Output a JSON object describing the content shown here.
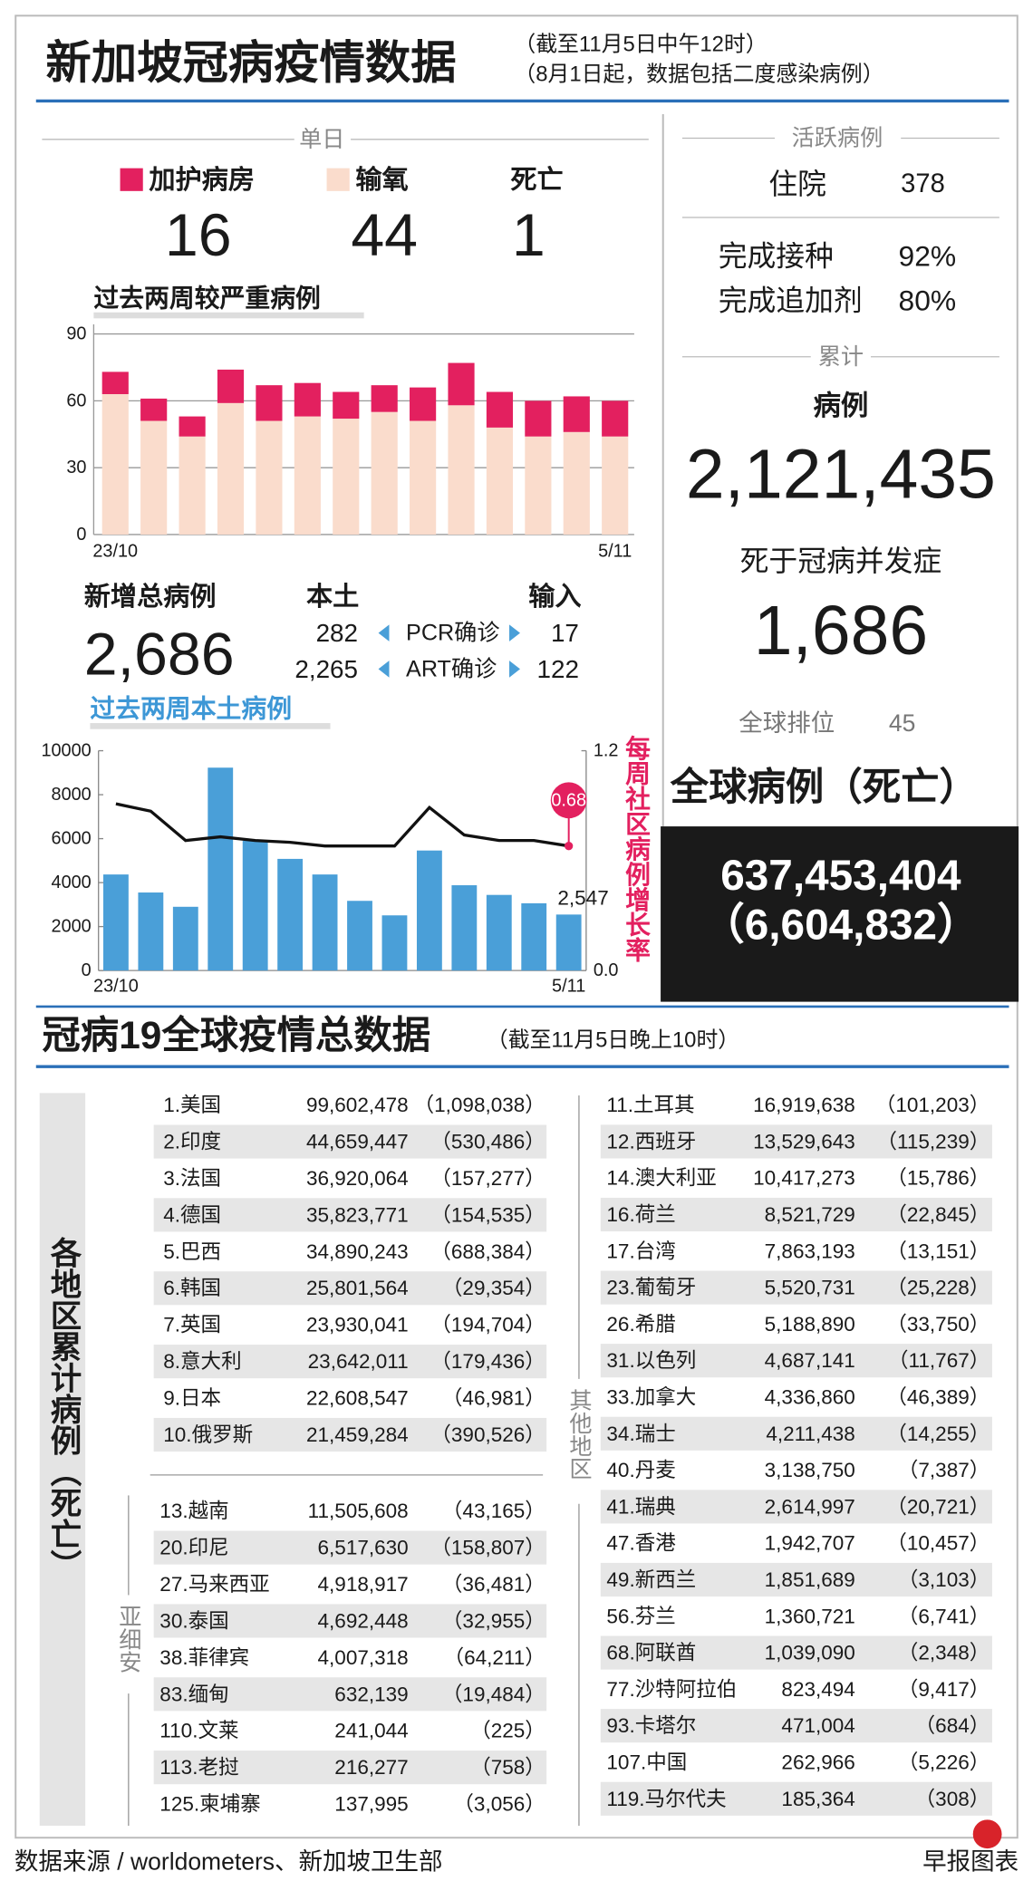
{
  "header": {
    "title": "新加坡冠病疫情数据",
    "notes": [
      "（截至11月5日中午12时）",
      "（8月1日起，数据包括二度感染病例）"
    ]
  },
  "daily": {
    "label": "单日",
    "values": [
      "16",
      "44",
      "1"
    ],
    "death_label": "死亡"
  },
  "new_cases": {
    "label": "新增总病例",
    "total": "2,686",
    "local_label": "本土",
    "import_label": "输入",
    "rows": [
      {
        "local": "282",
        "method": "PCR确诊",
        "import": "17"
      },
      {
        "local": "2,265",
        "method": "ART确诊",
        "import": "122"
      }
    ]
  },
  "active": {
    "label": "活跃病例",
    "hospital_label": "住院",
    "hospital": "378"
  },
  "vaccination": [
    [
      "完成接种",
      "92%"
    ],
    [
      "完成追加剂",
      "80%"
    ]
  ],
  "cumulative": {
    "label": "累计",
    "cases_label": "病例",
    "cases": "2,121,435",
    "deaths_label": "死于冠病并发症",
    "deaths": "1,686",
    "rank_label": "全球排位",
    "rank": "45"
  },
  "global": {
    "title": "全球病例（死亡）",
    "cases": "637,453,404",
    "deaths": "（6,604,832）"
  },
  "world_table": {
    "title": "冠病19全球疫情总数据",
    "note": "（截至11月5日晚上10时）",
    "side_label": "各地区累计病例（死亡）",
    "top": [
      [
        "1.美国",
        "99,602,478",
        "（1,098,038）"
      ],
      [
        "2.印度",
        "44,659,447",
        "（530,486）"
      ],
      [
        "3.法国",
        "36,920,064",
        "（157,277）"
      ],
      [
        "4.德国",
        "35,823,771",
        "（154,535）"
      ],
      [
        "5.巴西",
        "34,890,243",
        "（688,384）"
      ],
      [
        "6.韩国",
        "25,801,564",
        "（29,354）"
      ],
      [
        "7.英国",
        "23,930,041",
        "（194,704）"
      ],
      [
        "8.意大利",
        "23,642,011",
        "（179,436）"
      ],
      [
        "9.日本",
        "22,608,547",
        "（46,981）"
      ],
      [
        "10.俄罗斯",
        "21,459,284",
        "（390,526）"
      ]
    ],
    "asean_label": "亚细安",
    "asean": [
      [
        "13.越南",
        "11,505,608",
        "（43,165）"
      ],
      [
        "20.印尼",
        "6,517,630",
        "（158,807）"
      ],
      [
        "27.马来西亚",
        "4,918,917",
        "（36,481）"
      ],
      [
        "30.泰国",
        "4,692,448",
        "（32,955）"
      ],
      [
        "38.菲律宾",
        "4,007,318",
        "（64,211）"
      ],
      [
        "83.缅甸",
        "632,139",
        "（19,484）"
      ],
      [
        "110.文莱",
        "241,044",
        "（225）"
      ],
      [
        "113.老挝",
        "216,277",
        "（758）"
      ],
      [
        "125.柬埔寨",
        "137,995",
        "（3,056）"
      ]
    ],
    "others_label": "其他地区",
    "others": [
      [
        "11.土耳其",
        "16,919,638",
        "（101,203）"
      ],
      [
        "12.西班牙",
        "13,529,643",
        "（115,239）"
      ],
      [
        "14.澳大利亚",
        "10,417,273",
        "（15,786）"
      ],
      [
        "16.荷兰",
        "8,521,729",
        "（22,845）"
      ],
      [
        "17.台湾",
        "7,863,193",
        "（13,151）"
      ],
      [
        "23.葡萄牙",
        "5,520,731",
        "（25,228）"
      ],
      [
        "26.希腊",
        "5,188,890",
        "（33,750）"
      ],
      [
        "31.以色列",
        "4,687,141",
        "（11,767）"
      ],
      [
        "33.加拿大",
        "4,336,860",
        "（46,389）"
      ],
      [
        "34.瑞士",
        "4,211,438",
        "（14,255）"
      ],
      [
        "40.丹麦",
        "3,138,750",
        "（7,387）"
      ],
      [
        "41.瑞典",
        "2,614,997",
        "（20,721）"
      ],
      [
        "47.香港",
        "1,942,707",
        "（10,457）"
      ],
      [
        "49.新西兰",
        "1,851,689",
        "（3,103）"
      ],
      [
        "56.芬兰",
        "1,360,721",
        "（6,741）"
      ],
      [
        "68.阿联酋",
        "1,039,090",
        "（2,348）"
      ],
      [
        "77.沙特阿拉伯",
        "823,494",
        "（9,417）"
      ],
      [
        "93.卡塔尔",
        "471,004",
        "（684）"
      ],
      [
        "107.中国",
        "262,966",
        "（5,226）"
      ],
      [
        "119.马尔代夫",
        "185,364",
        "（308）"
      ]
    ]
  },
  "footer": {
    "source": "数据来源 / worldometers、新加坡卫生部",
    "brand": "早报图表"
  },
  "chart_data": [
    {
      "type": "bar",
      "stacked": true,
      "title": "过去两周较严重病例",
      "categories": [
        "23/10",
        null,
        null,
        null,
        null,
        null,
        null,
        null,
        null,
        null,
        null,
        null,
        null,
        "5/11"
      ],
      "series": [
        {
          "name": "加护病房",
          "color": "#e3205f",
          "values": [
            10,
            10,
            9,
            15,
            16,
            15,
            12,
            12,
            15,
            19,
            16,
            16,
            16,
            16
          ]
        },
        {
          "name": "输氧",
          "color": "#fadccc",
          "values": [
            63,
            51,
            44,
            59,
            51,
            53,
            52,
            55,
            51,
            58,
            48,
            44,
            46,
            44
          ]
        }
      ],
      "ylim": [
        0,
        90
      ],
      "yticks": [
        0,
        30,
        60,
        90
      ],
      "grid": true
    },
    {
      "type": "combo",
      "title": "过去两周本土病例",
      "categories": [
        "23/10",
        null,
        null,
        null,
        null,
        null,
        null,
        null,
        null,
        null,
        null,
        null,
        null,
        "5/11"
      ],
      "series": [
        {
          "type": "bar",
          "color": "#4a9fd8",
          "values": [
            4370,
            3550,
            2900,
            9230,
            5900,
            5080,
            4370,
            3170,
            2510,
            5460,
            3880,
            3440,
            3060,
            2547
          ],
          "value_labels": [
            null,
            null,
            null,
            null,
            null,
            null,
            null,
            null,
            null,
            null,
            null,
            null,
            null,
            "2,547"
          ]
        },
        {
          "type": "line",
          "axis": "y2",
          "color": "#111111",
          "values": [
            0.91,
            0.87,
            0.71,
            0.73,
            0.71,
            0.7,
            0.68,
            0.68,
            0.68,
            0.89,
            0.74,
            0.71,
            0.71,
            0.68
          ]
        }
      ],
      "y2label": "每周社区病例增长率",
      "ylim": [
        0,
        10000
      ],
      "yticks": [
        0,
        2000,
        4000,
        6000,
        8000,
        10000
      ],
      "y2lim": [
        0,
        1.2
      ],
      "y2ticks": [
        {
          "value": 0,
          "label": "0.0"
        },
        1.2
      ],
      "grid": false
    }
  ]
}
